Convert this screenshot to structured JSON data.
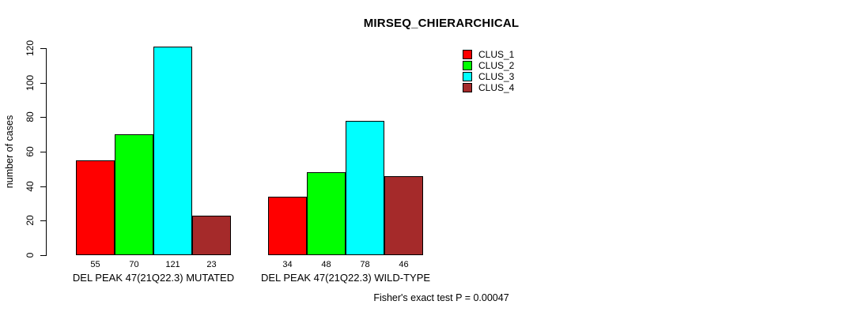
{
  "chart_data": {
    "type": "bar",
    "title": "MIRSEQ_CHIERARCHICAL",
    "ylabel": "number of cases",
    "xlabel": "",
    "ylim": [
      0,
      120
    ],
    "yticks": [
      0,
      20,
      40,
      60,
      80,
      100,
      120
    ],
    "grid": false,
    "legend_position": "top-right",
    "series": [
      {
        "name": "CLUS_1",
        "color": "#FF0000"
      },
      {
        "name": "CLUS_2",
        "color": "#00FF00"
      },
      {
        "name": "CLUS_3",
        "color": "#00FFFF"
      },
      {
        "name": "CLUS_4",
        "color": "#A52A2A"
      }
    ],
    "groups": [
      {
        "label": "DEL PEAK 47(21Q22.3) MUTATED",
        "values": [
          55,
          70,
          121,
          23
        ]
      },
      {
        "label": "DEL PEAK 47(21Q22.3) WILD-TYPE",
        "values": [
          34,
          48,
          78,
          46
        ]
      }
    ],
    "annotation": "Fisher's exact test P = 0.00047"
  }
}
